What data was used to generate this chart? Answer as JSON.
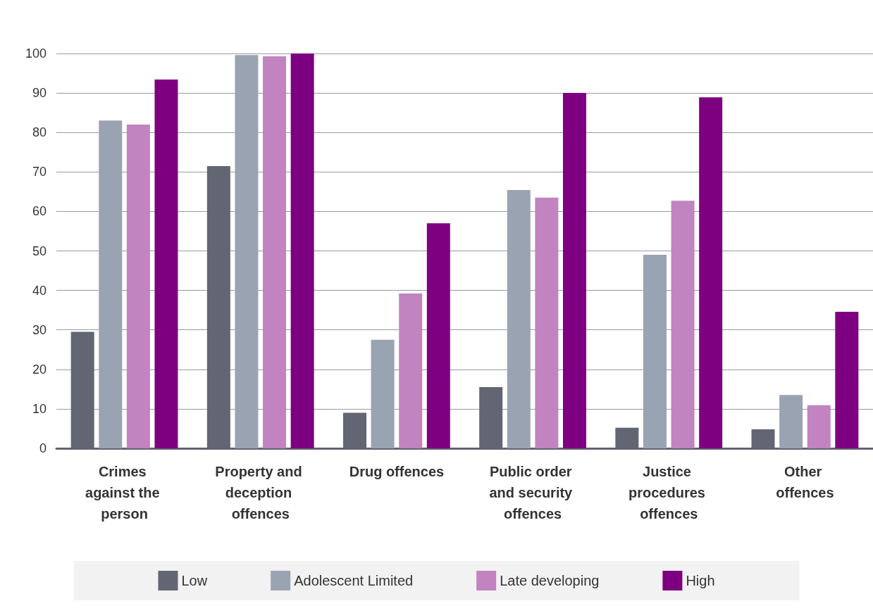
{
  "chart_data": {
    "type": "bar",
    "categories": [
      "Crimes against the person",
      "Property and deception offences",
      "Drug offences",
      "Public order and security offences",
      "Justice procedures offences",
      "Other offences"
    ],
    "series": [
      {
        "name": "Low",
        "color": "#626673",
        "values": [
          29.5,
          71.5,
          9,
          15.5,
          5.2,
          4.8
        ]
      },
      {
        "name": "Adolescent Limited",
        "color": "#9aa3b2",
        "values": [
          83,
          99.6,
          27.5,
          65.4,
          49,
          13.5
        ]
      },
      {
        "name": "Late developing",
        "color": "#c283c1",
        "values": [
          82,
          99.3,
          39.2,
          63.5,
          62.7,
          10.9
        ]
      },
      {
        "name": "High",
        "color": "#7d0080",
        "values": [
          93.4,
          100,
          57,
          90,
          88.9,
          34.6
        ]
      }
    ],
    "ylim": [
      0,
      100
    ],
    "yticks": [
      0,
      10,
      20,
      30,
      40,
      50,
      60,
      70,
      80,
      90,
      100
    ],
    "grid": "y",
    "legend": "bottom"
  }
}
